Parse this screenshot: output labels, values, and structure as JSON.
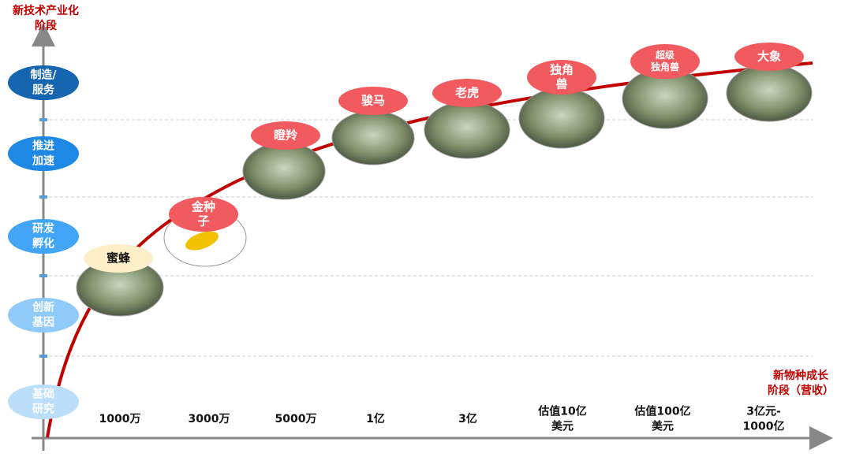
{
  "y_axis_title": [
    "新技术产业化",
    "阶段"
  ],
  "x_axis_title": [
    "新物种成长",
    "阶段（营收）"
  ],
  "stages": [
    [
      "制造/",
      "服务"
    ],
    [
      "推进",
      "加速"
    ],
    [
      "研发",
      "孵化"
    ],
    [
      "创新",
      "基因"
    ],
    [
      "基础",
      "研究"
    ]
  ],
  "x_labels": [
    [
      "1000万"
    ],
    [
      "3000万"
    ],
    [
      "5000万"
    ],
    [
      "1亿"
    ],
    [
      "3亿"
    ],
    [
      "估值10亿",
      "美元"
    ],
    [
      "估值100亿",
      "美元"
    ],
    [
      "3亿元-",
      "1000亿"
    ]
  ],
  "species": [
    [
      "蜜蜂"
    ],
    [
      "金种",
      "子"
    ],
    [
      "瞪羚"
    ],
    [
      "骏马"
    ],
    [
      "老虎"
    ],
    [
      "独角",
      "兽"
    ],
    [
      "超级",
      "独角兽"
    ],
    [
      "大象"
    ]
  ]
}
